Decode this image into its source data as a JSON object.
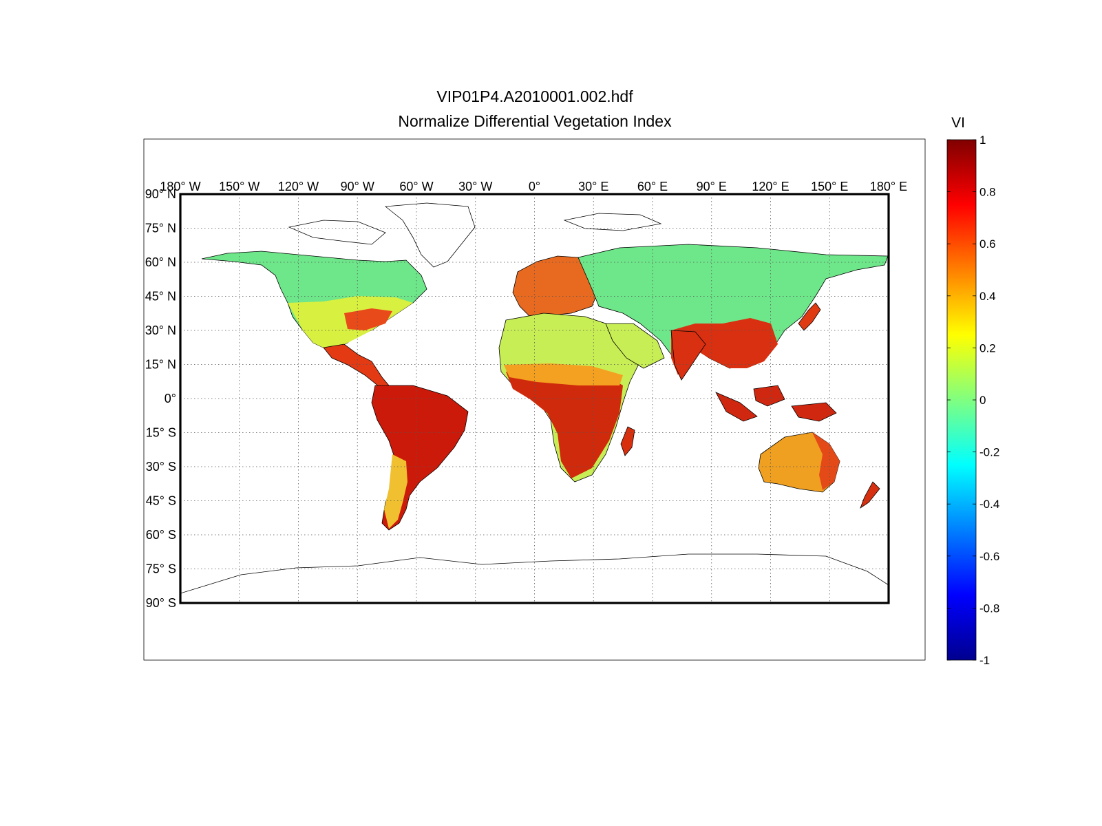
{
  "figure": {
    "title_line1": "VIP01P4.A2010001.002.hdf",
    "title_line2": "Normalize Differential Vegetation Index"
  },
  "map": {
    "projection": "equirectangular",
    "lon_range": [
      -180,
      180
    ],
    "lat_range": [
      -90,
      90
    ],
    "grid": "dotted",
    "lon_labels": [
      "180° W",
      "150° W",
      "120° W",
      "90° W",
      "60° W",
      "30° W",
      "0°",
      "30° E",
      "60° E",
      "90° E",
      "120° E",
      "150° E",
      "180° E"
    ],
    "lat_labels": [
      "90° N",
      "75° N",
      "60° N",
      "45° N",
      "30° N",
      "15° N",
      "0°",
      "15° S",
      "30° S",
      "45° S",
      "60° S",
      "75° S",
      "90° S"
    ],
    "land_background": "white",
    "coastline_color": "#000000"
  },
  "colorbar": {
    "title": "VI",
    "colormap": "jet",
    "range": [
      -1,
      1
    ],
    "tick_labels": [
      "1",
      "0.8",
      "0.6",
      "0.4",
      "0.2",
      "0",
      "-0.2",
      "-0.4",
      "-0.6",
      "-0.8",
      "-1"
    ]
  },
  "colors": {
    "low_value": "#00008f",
    "mid_value": "#80ff80",
    "high_value": "#800000"
  }
}
